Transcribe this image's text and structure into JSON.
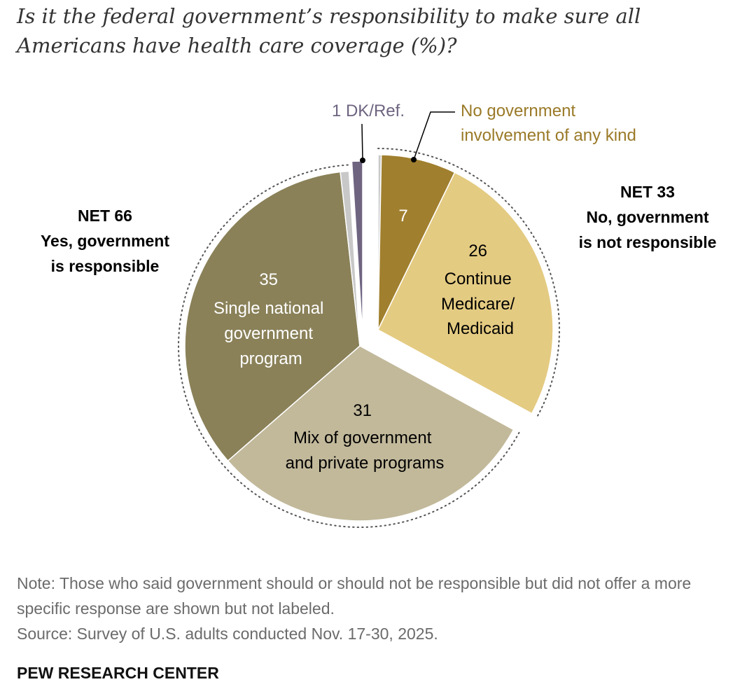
{
  "title": "Is it the federal government’s responsibility to make sure all Americans have health care coverage (%)?",
  "chart_data": {
    "type": "pie",
    "title": "Is it the federal government’s responsibility to make sure all Americans have health care coverage (%)?",
    "groups": [
      {
        "name": "NET 33 No, government is not responsible",
        "net_label": "NET 33",
        "net_text1": "No, government",
        "net_text2": "is not responsible",
        "net": 33,
        "exploded": true
      },
      {
        "name": "NET 66 Yes, government is responsible",
        "net_label": "NET 66",
        "net_text1": "Yes, government",
        "net_text2": "is responsible",
        "net": 66,
        "exploded": false
      }
    ],
    "slices": [
      {
        "group": 0,
        "label": "",
        "value": 0.3,
        "color": "#c8c8c8",
        "shown": false
      },
      {
        "group": 0,
        "label": "No government involvement of any kind",
        "value": 7,
        "color": "#a07f2e"
      },
      {
        "group": 0,
        "label": "Continue Medicare/ Medicaid",
        "value": 26,
        "color": "#e4cb82"
      },
      {
        "group": 1,
        "label": "Mix of government and private programs",
        "value": 31,
        "color": "#c2b99b"
      },
      {
        "group": 1,
        "label": "Single national government program",
        "value": 35,
        "color": "#8a8159"
      },
      {
        "group": 1,
        "label": "",
        "value": 0.8,
        "color": "#c8c8c8",
        "shown": false
      },
      {
        "group": 2,
        "label": "DK/Ref.",
        "value": 1,
        "color": "#6e6480"
      }
    ],
    "labels": {
      "single_value": "35",
      "single_l1": "Single national",
      "single_l2": "government",
      "single_l3": "program",
      "mix_value": "31",
      "mix_l1": "Mix of government",
      "mix_l2": "and private programs",
      "none_value": "7",
      "none_l1": "No government",
      "none_l2": "involvement of any kind",
      "medicare_value": "26",
      "medicare_l1": "Continue",
      "medicare_l2": "Medicare/",
      "medicare_l3": "Medicaid",
      "dk": "1 DK/Ref."
    }
  },
  "note": "Note: Those who said government should or should not be responsible but did not offer a more specific response are shown but not labeled.",
  "source": "Source: Survey of U.S. adults conducted Nov. 17-30, 2025.",
  "brand": "PEW RESEARCH CENTER"
}
